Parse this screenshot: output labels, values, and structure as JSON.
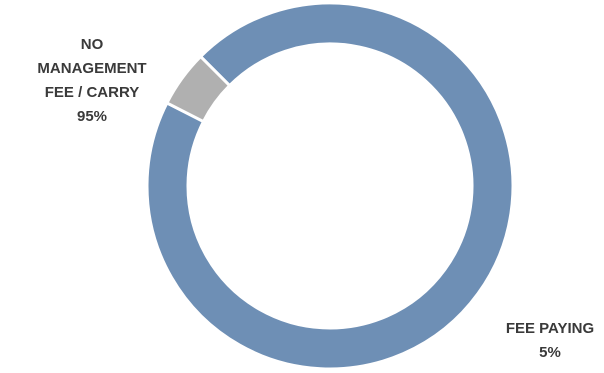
{
  "chart_data": {
    "type": "pie",
    "variant": "donut",
    "start_angle_deg": 153,
    "direction": "counterclockwise",
    "slices": [
      {
        "label_lines": [
          "NO",
          "MANAGEMENT",
          "FEE / CARRY"
        ],
        "percent_label": "95%",
        "value": 95,
        "color": "#6e8fb5"
      },
      {
        "label_lines": [
          "FEE PAYING"
        ],
        "percent_label": "5%",
        "value": 5,
        "color": "#b0b0b0"
      }
    ],
    "separator_color": "#ffffff",
    "legend": "none"
  }
}
